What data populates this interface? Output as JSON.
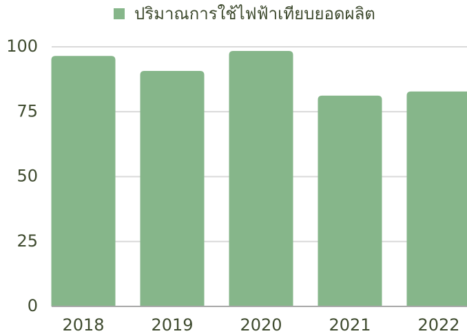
{
  "chart_data": {
    "type": "bar",
    "series": [
      {
        "name": "ปริมาณการใช้ไฟฟ้าเทียบยอดผลิต",
        "color": "#86b68a",
        "values": [
          96.5,
          90.7,
          98.4,
          81.2,
          82.8
        ]
      }
    ],
    "categories": [
      "2018",
      "2019",
      "2020",
      "2021",
      "2022"
    ],
    "ylim": [
      0,
      100
    ],
    "yticks": [
      0,
      25,
      50,
      75,
      100
    ],
    "grid": true,
    "legend": "top"
  }
}
